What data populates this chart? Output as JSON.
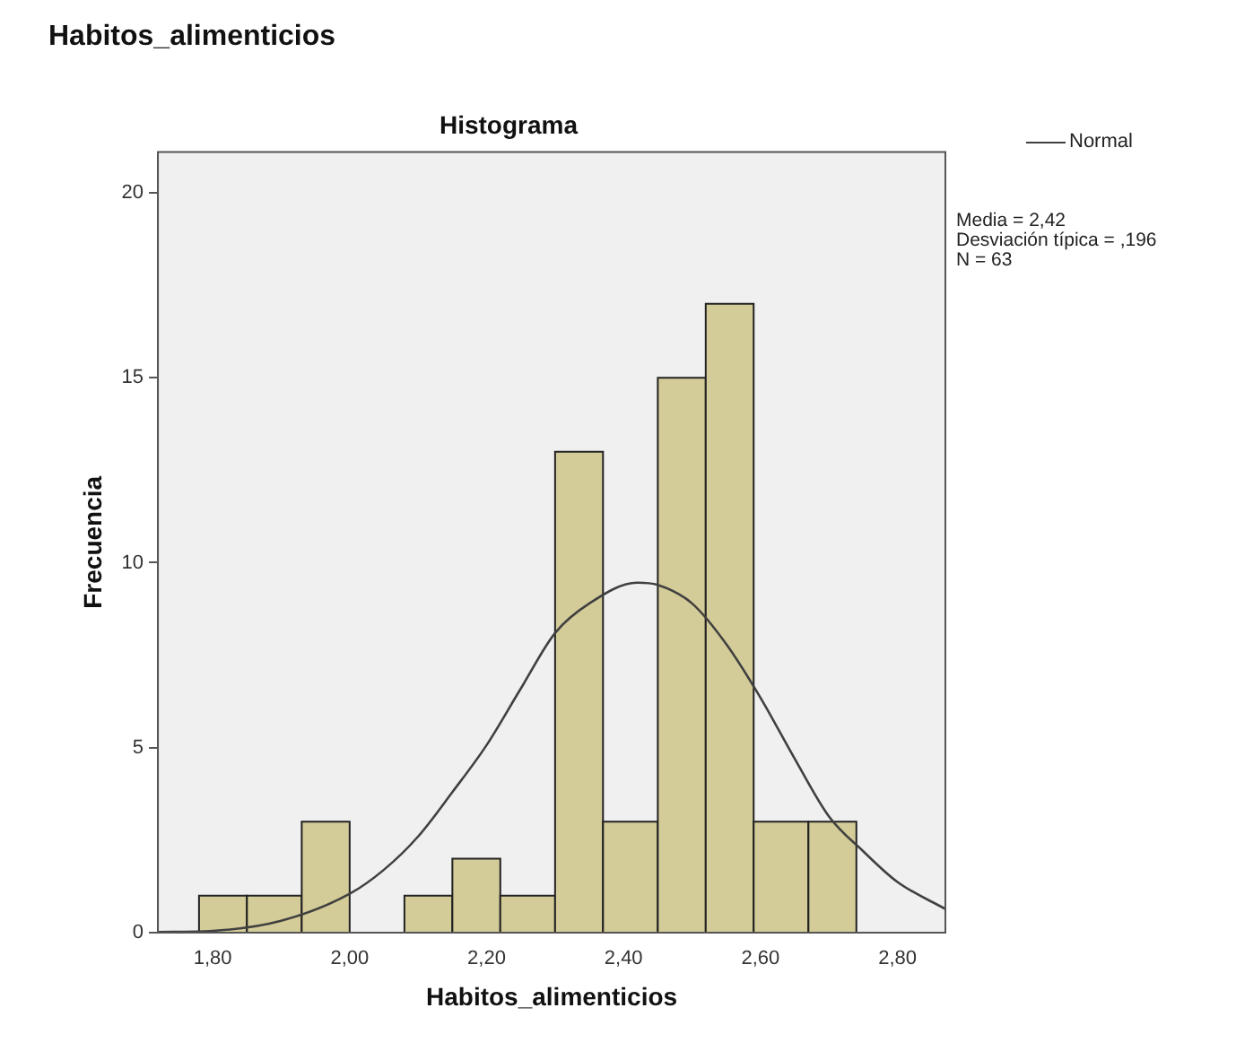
{
  "chart_data": {
    "type": "histogram",
    "title": "Habitos_alimenticios",
    "subtitle": "Histograma",
    "xlabel": "Habitos_alimenticios",
    "ylabel": "Frecuencia",
    "bins": [
      1.78,
      1.85,
      1.93,
      2.0,
      2.08,
      2.15,
      2.22,
      2.3,
      2.37,
      2.45,
      2.52,
      2.59,
      2.67,
      2.74
    ],
    "values": [
      1,
      1,
      3,
      0,
      1,
      2,
      1,
      13,
      3,
      15,
      17,
      3,
      3
    ],
    "color": "#d4cc98",
    "series": [
      {
        "type": "line",
        "name": "Normal",
        "color": "#404040",
        "x": [
          1.72,
          1.8,
          1.9,
          2.0,
          2.05,
          2.1,
          2.15,
          2.2,
          2.25,
          2.3,
          2.35,
          2.42,
          2.45,
          2.5,
          2.55,
          2.6,
          2.65,
          2.7,
          2.75,
          2.8,
          2.87
        ],
        "values": [
          0.02,
          0.05,
          0.32,
          1.05,
          1.7,
          2.6,
          3.8,
          5.07,
          6.6,
          8.1,
          8.9,
          9.46,
          9.4,
          8.9,
          7.8,
          6.35,
          4.7,
          3.14,
          2.2,
          1.37,
          0.64
        ]
      }
    ],
    "annotations": [
      "Media = 2,42",
      "Desviación típica = ,196",
      "N = 63"
    ],
    "xlim": [
      1.72,
      2.87
    ],
    "ylim": [
      0,
      21.1
    ],
    "xticks": [
      {
        "value": 1.8,
        "label": "1,80"
      },
      {
        "value": 2.0,
        "label": "2,00"
      },
      {
        "value": 2.2,
        "label": "2,20"
      },
      {
        "value": 2.4,
        "label": "2,40"
      },
      {
        "value": 2.6,
        "label": "2,60"
      },
      {
        "value": 2.8,
        "label": "2,80"
      }
    ],
    "yticks": [
      0,
      5,
      10,
      15,
      20
    ],
    "legend": "right",
    "marker": "none",
    "line_style": "solid"
  }
}
